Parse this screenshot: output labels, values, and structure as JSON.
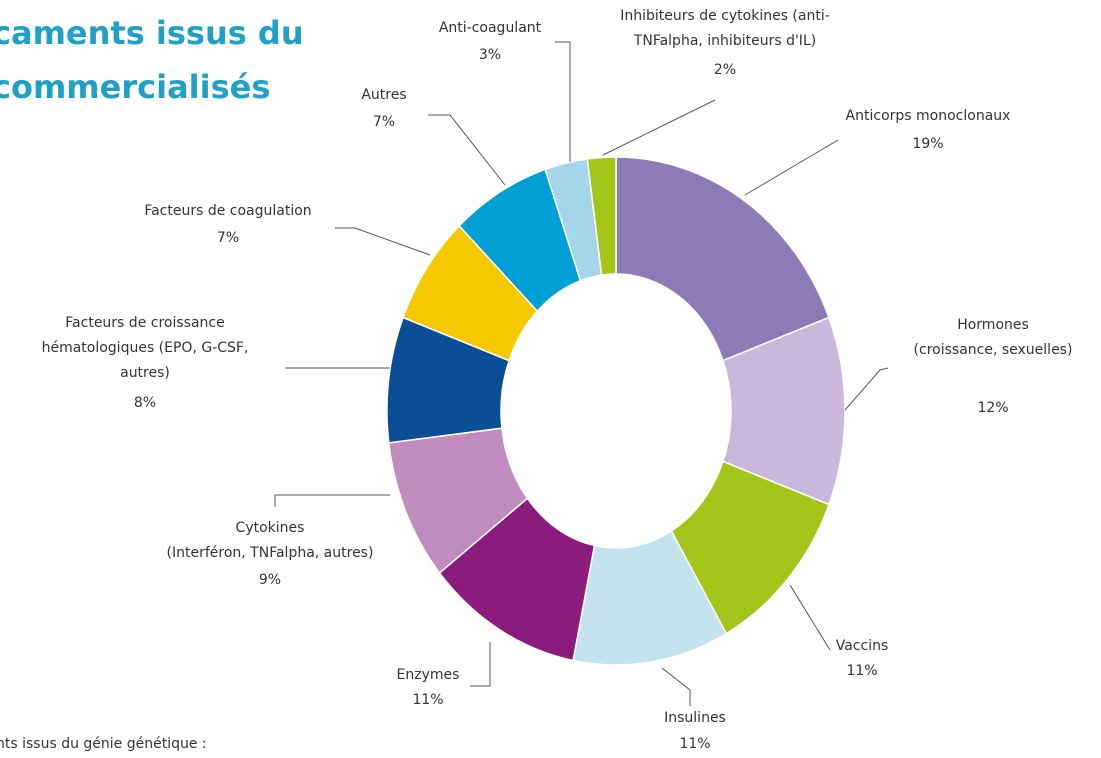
{
  "chart_data": {
    "type": "donut",
    "title_lines": [
      "caments issus du",
      "commercialisés"
    ],
    "footnote": "nts issus du génie génétique :",
    "categories": [
      [
        "Anticorps monoclonaux"
      ],
      [
        "Hormones",
        "(croissance, sexuelles)"
      ],
      [
        "Vaccins"
      ],
      [
        "Insulines"
      ],
      [
        "Enzymes"
      ],
      [
        "Cytokines",
        "(Interféron, TNFalpha, autres)"
      ],
      [
        "Facteurs de croissance",
        "hématologiques (EPO, G-CSF,",
        "autres)"
      ],
      [
        "Facteurs de coagulation"
      ],
      [
        "Autres"
      ],
      [
        "Anti-coagulant"
      ],
      [
        "Inhibiteurs de cytokines (anti-",
        "TNFalpha, inhibiteurs d'IL)"
      ]
    ],
    "values": [
      19,
      12,
      11,
      11,
      11,
      9,
      8,
      7,
      7,
      3,
      2
    ],
    "value_labels": [
      "19%",
      "12%",
      "11%",
      "11%",
      "11%",
      "9%",
      "8%",
      "7%",
      "7%",
      "3%",
      "2%"
    ],
    "colors": [
      "#8c7bb5",
      "#c9b8dc",
      "#a5c41a",
      "#c5e3ef",
      "#8c1b7e",
      "#c08cc0",
      "#0a4f95",
      "#f5c800",
      "#009fd4",
      "#a4d5e9",
      "#a5c41a"
    ]
  }
}
